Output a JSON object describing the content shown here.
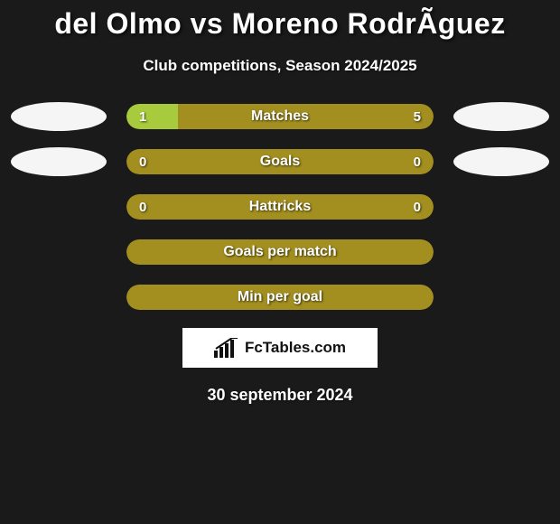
{
  "title": "del Olmo vs Moreno RodrÃ­guez",
  "subtitle": "Club competitions, Season 2024/2025",
  "colors": {
    "background": "#1a1a1a",
    "bar_left": "#a7cb3c",
    "bar_right": "#a38f1f",
    "bar_full": "#a38f1f",
    "ellipse": "#f5f5f5",
    "text": "#ffffff"
  },
  "rows": [
    {
      "label": "Matches",
      "left_value": "1",
      "right_value": "5",
      "left_color": "#a7cb3c",
      "right_color": "#a38f1f",
      "left_pct": 16.7,
      "right_pct": 83.3,
      "show_ellipses": true
    },
    {
      "label": "Goals",
      "left_value": "0",
      "right_value": "0",
      "left_color": "#a38f1f",
      "right_color": "#a38f1f",
      "left_pct": 50,
      "right_pct": 50,
      "show_ellipses": true
    },
    {
      "label": "Hattricks",
      "left_value": "0",
      "right_value": "0",
      "left_color": "#a38f1f",
      "right_color": "#a38f1f",
      "left_pct": 50,
      "right_pct": 50,
      "show_ellipses": false
    },
    {
      "label": "Goals per match",
      "left_value": "",
      "right_value": "",
      "left_color": "#a38f1f",
      "right_color": "#a38f1f",
      "left_pct": 50,
      "right_pct": 50,
      "show_ellipses": false
    },
    {
      "label": "Min per goal",
      "left_value": "",
      "right_value": "",
      "left_color": "#a38f1f",
      "right_color": "#a38f1f",
      "left_pct": 50,
      "right_pct": 50,
      "show_ellipses": false
    }
  ],
  "logo_text": "FcTables.com",
  "date": "30 september 2024"
}
